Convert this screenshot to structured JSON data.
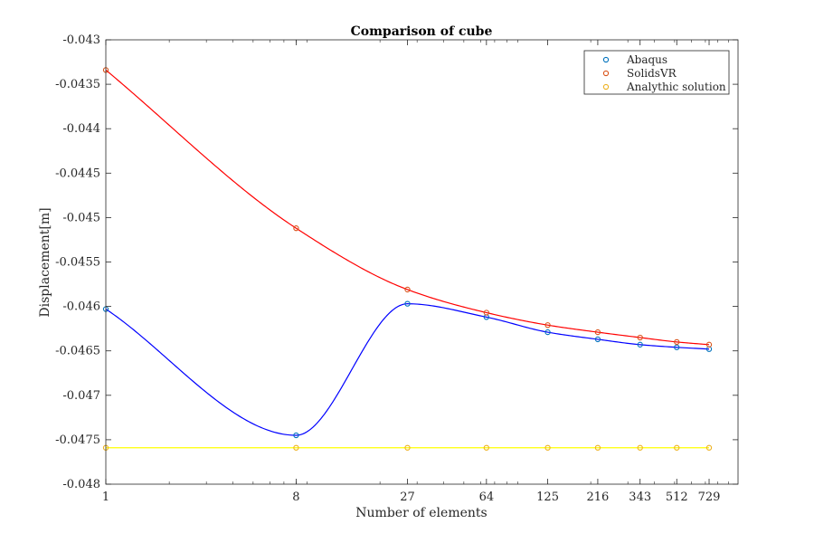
{
  "chart_data": {
    "type": "line",
    "title": "Comparison of cube",
    "xlabel": "Number of elements",
    "ylabel": "Displacement[m]",
    "x_scale": "log",
    "xlim": [
      1,
      1000
    ],
    "ylim": [
      -0.048,
      -0.043
    ],
    "x_ticks": [
      1,
      8,
      27,
      64,
      125,
      216,
      343,
      512,
      729
    ],
    "x_tick_labels": [
      "1",
      "8",
      "27",
      "64",
      "125",
      "216",
      "343",
      "512",
      "729"
    ],
    "y_ticks": [
      -0.043,
      -0.0435,
      -0.044,
      -0.0445,
      -0.045,
      -0.0455,
      -0.046,
      -0.0465,
      -0.047,
      -0.0475,
      -0.048
    ],
    "y_tick_labels": [
      "-0.043",
      "-0.0435",
      "-0.044",
      "-0.0445",
      "-0.045",
      "-0.0455",
      "-0.046",
      "-0.0465",
      "-0.047",
      "-0.0475",
      "-0.048"
    ],
    "x": [
      1,
      8,
      27,
      64,
      125,
      216,
      343,
      512,
      729
    ],
    "grid": false,
    "legend_position": "top-right",
    "series": [
      {
        "name": "Abaqus",
        "marker_color": "#0072BD",
        "line_color": "#0000FF",
        "values": [
          -0.04603,
          -0.04745,
          -0.04597,
          -0.04612,
          -0.04629,
          -0.04637,
          -0.04643,
          -0.04646,
          -0.04648
        ]
      },
      {
        "name": "SolidsVR",
        "marker_color": "#D95319",
        "line_color": "#FF0000",
        "values": [
          -0.04334,
          -0.04512,
          -0.04581,
          -0.04607,
          -0.04621,
          -0.04629,
          -0.04635,
          -0.0464,
          -0.04643
        ]
      },
      {
        "name": "Analythic solution",
        "marker_color": "#EDB120",
        "line_color": "#FFFF00",
        "values": [
          -0.04759,
          -0.04759,
          -0.04759,
          -0.04759,
          -0.04759,
          -0.04759,
          -0.04759,
          -0.04759,
          -0.04759
        ]
      }
    ]
  }
}
